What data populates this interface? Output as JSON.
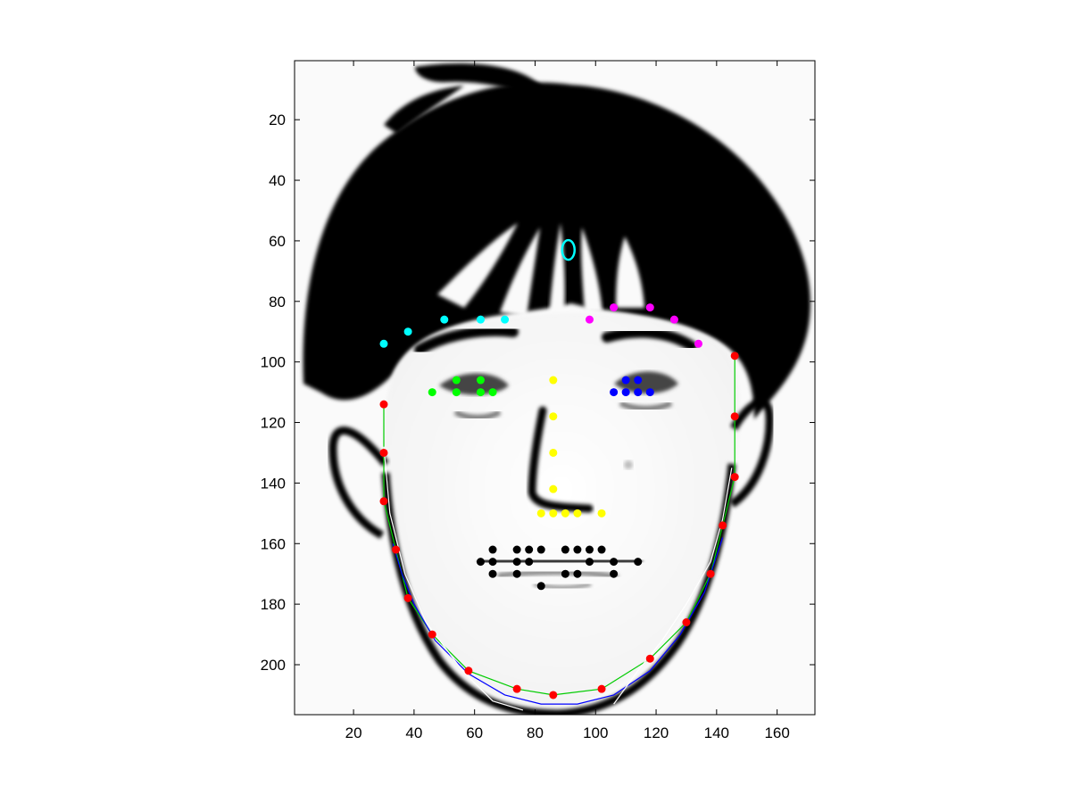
{
  "chart_data": {
    "type": "scatter",
    "title": "",
    "xlabel": "",
    "ylabel": "",
    "background": "face-drawing",
    "xlim": [
      0.5,
      172.5
    ],
    "ylim": [
      216.5,
      0.5
    ],
    "y_axis_direction": "reversed",
    "grid": false,
    "xticks": [
      20,
      40,
      60,
      80,
      100,
      120,
      140,
      160
    ],
    "yticks": [
      20,
      40,
      60,
      80,
      100,
      120,
      140,
      160,
      180,
      200
    ],
    "series": [
      {
        "color": "#ff0000",
        "marker": "dot",
        "points": [
          [
            30,
            114
          ],
          [
            30,
            130
          ],
          [
            30,
            146
          ],
          [
            34,
            162
          ],
          [
            38,
            178
          ],
          [
            46,
            190
          ],
          [
            58,
            202
          ],
          [
            74,
            208
          ],
          [
            86,
            210
          ],
          [
            102,
            208
          ],
          [
            118,
            198
          ],
          [
            130,
            186
          ],
          [
            138,
            170
          ],
          [
            142,
            154
          ],
          [
            146,
            138
          ],
          [
            146,
            118
          ],
          [
            146,
            98
          ]
        ]
      },
      {
        "color": "#00ffff",
        "marker": "dot",
        "points": [
          [
            30,
            94
          ],
          [
            38,
            90
          ],
          [
            50,
            86
          ],
          [
            62,
            86
          ],
          [
            70,
            86
          ]
        ]
      },
      {
        "color": "#ff00ff",
        "marker": "dot",
        "points": [
          [
            98,
            86
          ],
          [
            106,
            82
          ],
          [
            118,
            82
          ],
          [
            126,
            86
          ],
          [
            134,
            94
          ]
        ]
      },
      {
        "color": "#00ff00",
        "marker": "dot",
        "points": [
          [
            46,
            110
          ],
          [
            54,
            106
          ],
          [
            62,
            106
          ],
          [
            54,
            110
          ],
          [
            62,
            110
          ],
          [
            66,
            110
          ]
        ]
      },
      {
        "color": "#0000ff",
        "marker": "dot",
        "points": [
          [
            110,
            106
          ],
          [
            114,
            106
          ],
          [
            106,
            110
          ],
          [
            110,
            110
          ],
          [
            114,
            110
          ],
          [
            118,
            110
          ]
        ]
      },
      {
        "color": "#ffff00",
        "marker": "dot",
        "points": [
          [
            86,
            106
          ],
          [
            86,
            118
          ],
          [
            86,
            130
          ],
          [
            86,
            142
          ],
          [
            82,
            150
          ],
          [
            86,
            150
          ],
          [
            90,
            150
          ],
          [
            94,
            150
          ],
          [
            102,
            150
          ]
        ]
      },
      {
        "color": "#000000",
        "marker": "dot",
        "points": [
          [
            62,
            166
          ],
          [
            66,
            162
          ],
          [
            74,
            162
          ],
          [
            78,
            162
          ],
          [
            82,
            162
          ],
          [
            90,
            162
          ],
          [
            94,
            162
          ],
          [
            98,
            162
          ],
          [
            102,
            162
          ],
          [
            66,
            166
          ],
          [
            74,
            166
          ],
          [
            78,
            166
          ],
          [
            98,
            166
          ],
          [
            106,
            166
          ],
          [
            114,
            166
          ],
          [
            66,
            170
          ],
          [
            74,
            170
          ],
          [
            90,
            170
          ],
          [
            94,
            170
          ],
          [
            106,
            170
          ],
          [
            82,
            174
          ]
        ]
      },
      {
        "color": "#00ffff",
        "marker": "ellipse",
        "points": [
          [
            91,
            63
          ]
        ]
      }
    ],
    "curves": [
      {
        "color": "#00cc00",
        "points": [
          [
            30,
            114
          ],
          [
            30,
            130
          ],
          [
            30,
            146
          ],
          [
            34,
            162
          ],
          [
            38,
            178
          ],
          [
            46,
            190
          ],
          [
            58,
            202
          ],
          [
            74,
            208
          ],
          [
            86,
            210
          ],
          [
            102,
            208
          ],
          [
            118,
            198
          ],
          [
            130,
            186
          ],
          [
            138,
            170
          ],
          [
            142,
            154
          ],
          [
            146,
            138
          ],
          [
            146,
            118
          ],
          [
            146,
            98
          ]
        ]
      },
      {
        "color": "#0000ff",
        "points": [
          [
            33,
            160
          ],
          [
            36,
            170
          ],
          [
            40,
            180
          ],
          [
            47,
            192
          ],
          [
            58,
            203
          ],
          [
            70,
            210
          ],
          [
            82,
            213
          ],
          [
            94,
            213
          ],
          [
            106,
            210
          ],
          [
            118,
            202
          ],
          [
            128,
            190
          ],
          [
            136,
            176
          ],
          [
            142,
            158
          ]
        ]
      },
      {
        "color": "#ffffff",
        "points": [
          [
            30,
            128
          ],
          [
            32,
            150
          ],
          [
            37,
            170
          ],
          [
            44,
            186
          ],
          [
            56,
            202
          ],
          [
            66,
            212
          ],
          [
            76,
            215
          ]
        ]
      },
      {
        "color": "#ffffff",
        "points": [
          [
            106,
            213
          ],
          [
            114,
            202
          ],
          [
            122,
            192
          ],
          [
            130,
            180
          ],
          [
            138,
            166
          ],
          [
            142,
            152
          ],
          [
            145,
            135
          ]
        ]
      }
    ]
  }
}
